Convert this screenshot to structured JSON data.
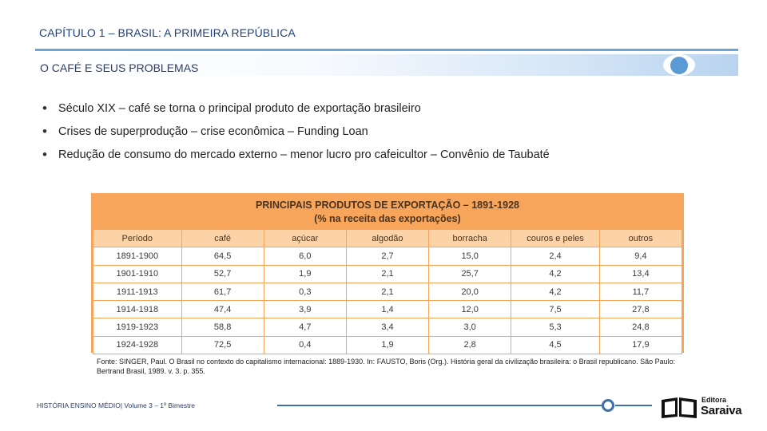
{
  "header": {
    "chapter_title": "CAPÍTULO 1 – BRASIL: A PRIMEIRA REPÚBLICA",
    "section_title": "O CAFÉ E SEUS PROBLEMAS"
  },
  "bullets": [
    "Século XIX – café se torna o principal produto de exportação brasileiro",
    "Crises de superprodução – crise econômica – Funding Loan",
    "Redução de consumo do mercado externo – menor lucro pro cafeicultor – Convênio de Taubaté"
  ],
  "table": {
    "title_line1": "PRINCIPAIS PRODUTOS DE EXPORTAÇÃO – 1891-1928",
    "title_line2": "(% na receita das exportações)",
    "columns": [
      "Período",
      "café",
      "açúcar",
      "algodão",
      "borracha",
      "couros e peles",
      "outros"
    ],
    "rows": [
      [
        "1891-1900",
        "64,5",
        "6,0",
        "2,7",
        "15,0",
        "2,4",
        "9,4"
      ],
      [
        "1901-1910",
        "52,7",
        "1,9",
        "2,1",
        "25,7",
        "4,2",
        "13,4"
      ],
      [
        "1911-1913",
        "61,7",
        "0,3",
        "2,1",
        "20,0",
        "4,2",
        "11,7"
      ],
      [
        "1914-1918",
        "47,4",
        "3,9",
        "1,4",
        "12,0",
        "7,5",
        "27,8"
      ],
      [
        "1919-1923",
        "58,8",
        "4,7",
        "3,4",
        "3,0",
        "5,3",
        "24,8"
      ],
      [
        "1924-1928",
        "72,5",
        "0,4",
        "1,9",
        "2,8",
        "4,5",
        "17,9"
      ]
    ]
  },
  "source": "Fonte: SINGER, Paul. O Brasil no contexto do capitalismo internacional: 1889-1930. In: FAUSTO, Boris (Org.). História geral da civilização brasileira: o Brasil republicano. São Paulo: Bertrand Brasil, 1989. v. 3. p. 355.",
  "footer": {
    "text": "HISTÓRIA ENSINO MÉDIO| Volume 3 – 1º Bimestre",
    "logo_small": "Editora",
    "logo_big": "Saraiva"
  }
}
